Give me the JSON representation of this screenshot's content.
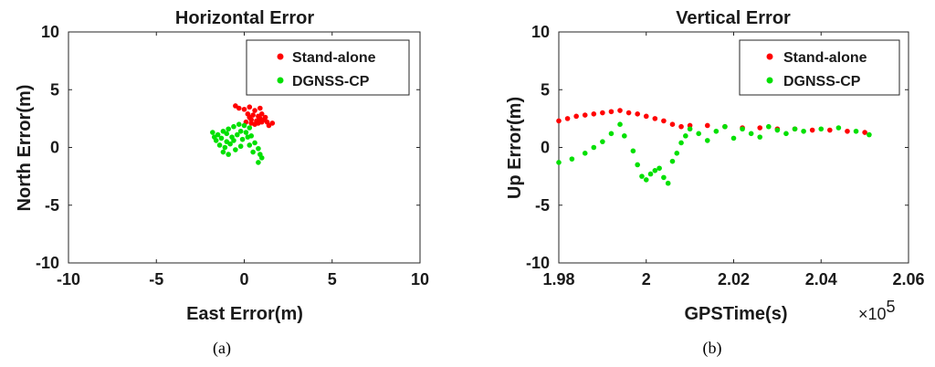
{
  "chart_data": [
    {
      "type": "scatter",
      "title": "Horizontal Error",
      "xlabel": "East Error(m)",
      "ylabel": "North Error(m)",
      "xlim": [
        -10,
        10
      ],
      "ylim": [
        -10,
        10
      ],
      "xticks": [
        "-10",
        "-5",
        "0",
        "5",
        "10"
      ],
      "yticks": [
        "10",
        "5",
        "0",
        "-5",
        "-10"
      ],
      "legend_position": "top-right",
      "caption": "(a)",
      "series": [
        {
          "name": "Stand-alone",
          "color": "#ff0000",
          "points": [
            [
              -0.5,
              3.6
            ],
            [
              -0.3,
              3.4
            ],
            [
              0.0,
              3.3
            ],
            [
              0.3,
              3.5
            ],
            [
              0.6,
              3.2
            ],
            [
              0.9,
              3.4
            ],
            [
              0.2,
              2.9
            ],
            [
              0.5,
              2.8
            ],
            [
              0.8,
              2.7
            ],
            [
              1.0,
              2.9
            ],
            [
              0.4,
              2.4
            ],
            [
              0.7,
              2.3
            ],
            [
              1.0,
              2.2
            ],
            [
              1.3,
              2.2
            ],
            [
              1.6,
              2.1
            ],
            [
              0.1,
              2.2
            ],
            [
              0.4,
              2.1
            ],
            [
              0.9,
              2.5
            ],
            [
              1.2,
              2.6
            ],
            [
              0.6,
              2.0
            ],
            [
              1.4,
              1.9
            ],
            [
              0.3,
              2.6
            ],
            [
              1.1,
              2.4
            ],
            [
              0.8,
              2.1
            ]
          ]
        },
        {
          "name": "DGNSS-CP",
          "color": "#00e000",
          "points": [
            [
              -1.8,
              1.3
            ],
            [
              -1.5,
              1.1
            ],
            [
              -1.2,
              1.4
            ],
            [
              -0.9,
              1.6
            ],
            [
              -0.6,
              1.8
            ],
            [
              -0.3,
              2.0
            ],
            [
              0.0,
              1.9
            ],
            [
              0.3,
              1.7
            ],
            [
              -1.6,
              0.6
            ],
            [
              -1.3,
              0.8
            ],
            [
              -1.0,
              0.5
            ],
            [
              -0.7,
              0.9
            ],
            [
              -0.4,
              1.1
            ],
            [
              -0.1,
              0.7
            ],
            [
              0.2,
              0.9
            ],
            [
              -1.4,
              0.2
            ],
            [
              -1.1,
              0.0
            ],
            [
              -0.8,
              0.3
            ],
            [
              -0.5,
              -0.2
            ],
            [
              -0.2,
              0.1
            ],
            [
              -1.2,
              -0.4
            ],
            [
              -0.9,
              -0.6
            ],
            [
              0.3,
              0.2
            ],
            [
              0.6,
              0.4
            ],
            [
              0.8,
              -0.1
            ],
            [
              0.5,
              -0.4
            ],
            [
              0.9,
              -0.6
            ],
            [
              1.0,
              -0.9
            ],
            [
              0.8,
              -1.3
            ],
            [
              -0.6,
              0.6
            ],
            [
              -1.7,
              0.9
            ],
            [
              -0.2,
              1.4
            ],
            [
              0.1,
              1.3
            ],
            [
              -1.0,
              1.2
            ],
            [
              0.4,
              1.0
            ]
          ]
        }
      ]
    },
    {
      "type": "scatter",
      "title": "Vertical Error",
      "xlabel": "GPSTime(s)",
      "ylabel": "Up Error(m)",
      "xlim": [
        1.98,
        2.06
      ],
      "ylim": [
        -10,
        10
      ],
      "x_multiplier": "×10",
      "x_multiplier_exp": "5",
      "xticks": [
        "1.98",
        "2",
        "2.02",
        "2.04",
        "2.06"
      ],
      "yticks": [
        "10",
        "5",
        "0",
        "-5",
        "-10"
      ],
      "legend_position": "top-right",
      "caption": "(b)",
      "series": [
        {
          "name": "Stand-alone",
          "color": "#ff0000",
          "points": [
            [
              1.98,
              2.3
            ],
            [
              1.982,
              2.5
            ],
            [
              1.984,
              2.7
            ],
            [
              1.986,
              2.8
            ],
            [
              1.988,
              2.9
            ],
            [
              1.99,
              3.0
            ],
            [
              1.992,
              3.1
            ],
            [
              1.994,
              3.2
            ],
            [
              1.996,
              3.0
            ],
            [
              1.998,
              2.9
            ],
            [
              2.0,
              2.7
            ],
            [
              2.002,
              2.5
            ],
            [
              2.004,
              2.3
            ],
            [
              2.006,
              2.0
            ],
            [
              2.008,
              1.8
            ],
            [
              2.01,
              1.9
            ],
            [
              2.014,
              1.9
            ],
            [
              2.018,
              1.8
            ],
            [
              2.022,
              1.7
            ],
            [
              2.026,
              1.7
            ],
            [
              2.03,
              1.6
            ],
            [
              2.034,
              1.6
            ],
            [
              2.038,
              1.5
            ],
            [
              2.042,
              1.5
            ],
            [
              2.046,
              1.4
            ],
            [
              2.05,
              1.3
            ]
          ]
        },
        {
          "name": "DGNSS-CP",
          "color": "#00e000",
          "points": [
            [
              1.98,
              -1.3
            ],
            [
              1.983,
              -1.0
            ],
            [
              1.986,
              -0.5
            ],
            [
              1.988,
              0.0
            ],
            [
              1.99,
              0.5
            ],
            [
              1.992,
              1.2
            ],
            [
              1.994,
              2.0
            ],
            [
              1.995,
              1.0
            ],
            [
              1.997,
              -0.3
            ],
            [
              1.998,
              -1.5
            ],
            [
              1.999,
              -2.5
            ],
            [
              2.0,
              -2.8
            ],
            [
              2.001,
              -2.3
            ],
            [
              2.002,
              -2.0
            ],
            [
              2.003,
              -1.8
            ],
            [
              2.004,
              -2.6
            ],
            [
              2.005,
              -3.1
            ],
            [
              2.006,
              -1.2
            ],
            [
              2.007,
              -0.5
            ],
            [
              2.008,
              0.4
            ],
            [
              2.009,
              1.0
            ],
            [
              2.01,
              1.6
            ],
            [
              2.012,
              1.2
            ],
            [
              2.014,
              0.6
            ],
            [
              2.016,
              1.4
            ],
            [
              2.018,
              1.8
            ],
            [
              2.02,
              0.8
            ],
            [
              2.022,
              1.6
            ],
            [
              2.024,
              1.2
            ],
            [
              2.026,
              0.9
            ],
            [
              2.028,
              1.8
            ],
            [
              2.03,
              1.5
            ],
            [
              2.032,
              1.2
            ],
            [
              2.034,
              1.6
            ],
            [
              2.036,
              1.4
            ],
            [
              2.04,
              1.6
            ],
            [
              2.044,
              1.7
            ],
            [
              2.048,
              1.4
            ],
            [
              2.051,
              1.1
            ]
          ]
        }
      ]
    }
  ]
}
